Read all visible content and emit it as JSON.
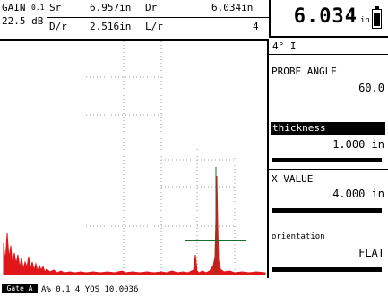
{
  "header": {
    "gain_label": "GAIN",
    "gain_step": "0.1",
    "gain_value": "22.5 dB",
    "sr_label": "Sr",
    "sr_value": "6.957in",
    "dr_label": "Dr",
    "dr_value": "6.034in",
    "dr2_label": "D/r",
    "dr2_value": "2.516in",
    "lr_label": "L/r",
    "lr_value": "4"
  },
  "reading": {
    "value": "6.034",
    "unit": "in"
  },
  "panel": {
    "angle_icon": "4° I",
    "probe_angle_label": "PROBE ANGLE",
    "probe_angle_value": "60.0",
    "thickness_label": "thickness",
    "thickness_value": "1.000 in",
    "x_value_label": "X VALUE",
    "x_value_value": "4.000 in",
    "orientation_label": "orientation",
    "orientation_value": "FLAT"
  },
  "status": {
    "badge": "Gate A",
    "text": "A% 0.1  4 YOS  10.0036"
  },
  "colors": {
    "trace": "#e0161b",
    "cursor": "#1c6b2a",
    "grid": "#9a9a9a"
  }
}
